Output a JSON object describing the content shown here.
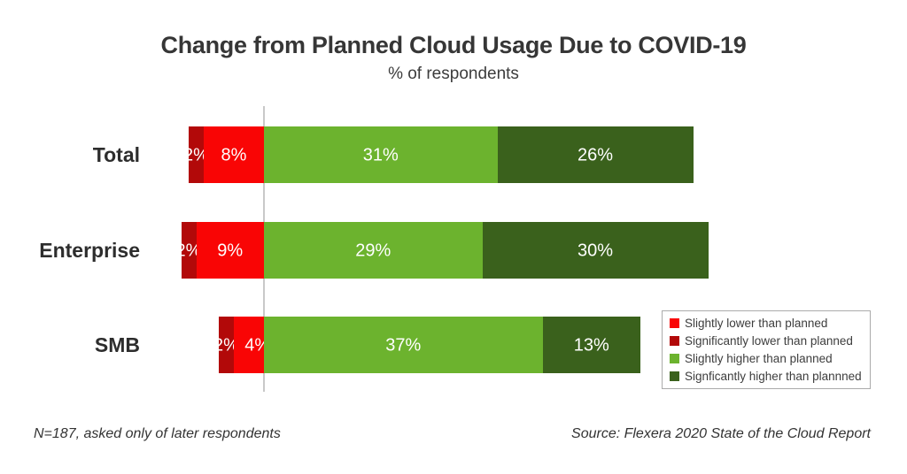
{
  "header": {
    "title": "Change from Planned Cloud Usage Due to COVID-19",
    "subtitle": "% of respondents"
  },
  "footer": {
    "note": "N=187, asked only of later respondents",
    "source": "Source: Flexera 2020 State of the Cloud Report"
  },
  "colors": {
    "slightly_lower": "#F90505",
    "significantly_lower": "#B20909",
    "slightly_higher": "#6CB32E",
    "significantly_higher": "#3A611C",
    "axis_line": "#C9C9C9",
    "value_label": "#FFFFFF"
  },
  "legend": [
    {
      "key": "slightly-lower",
      "label": "Slightly lower than planned",
      "color": "#F90505"
    },
    {
      "key": "significantly-lower",
      "label": "Significantly lower than planned",
      "color": "#B20909"
    },
    {
      "key": "slightly-higher",
      "label": "Slightly higher than planned",
      "color": "#6CB32E"
    },
    {
      "key": "significantly-higher",
      "label": "Signficantly higher than plannned",
      "color": "#3A611C"
    }
  ],
  "chart_data": {
    "type": "bar",
    "orientation": "horizontal",
    "diverging": true,
    "baseline": 0,
    "grid": false,
    "legend_position": "bottom-right",
    "value_label_format": "{value}%",
    "categories": [
      "Total",
      "Enterprise",
      "SMB"
    ],
    "series": [
      {
        "key": "significantly-lower",
        "name": "Significantly lower than planned",
        "side": "negative-outer",
        "color": "#B20909",
        "values": [
          2,
          2,
          2
        ]
      },
      {
        "key": "slightly-lower",
        "name": "Slightly lower than planned",
        "side": "negative-inner",
        "color": "#F90505",
        "values": [
          8,
          9,
          4
        ]
      },
      {
        "key": "slightly-higher",
        "name": "Slightly higher than planned",
        "side": "positive-inner",
        "color": "#6CB32E",
        "values": [
          31,
          29,
          37
        ]
      },
      {
        "key": "significantly-higher",
        "name": "Signficantly higher than plannned",
        "side": "positive-outer",
        "color": "#3A611C",
        "values": [
          26,
          30,
          13
        ]
      }
    ]
  }
}
